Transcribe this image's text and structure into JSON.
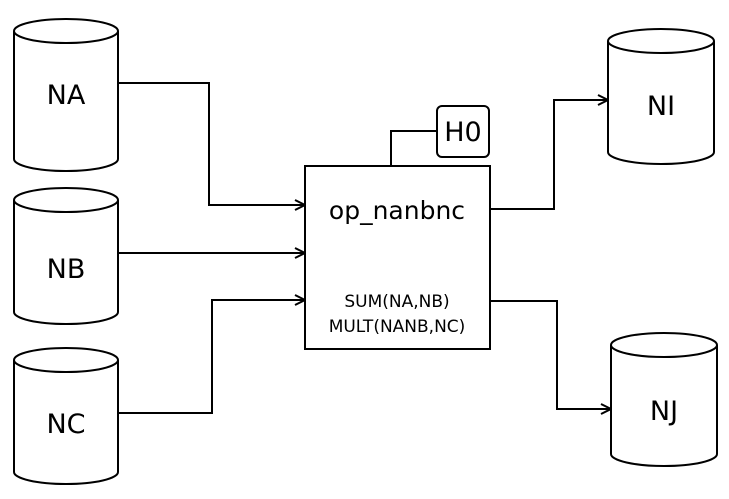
{
  "inputs": [
    {
      "label": "NA"
    },
    {
      "label": "NB"
    },
    {
      "label": "NC"
    }
  ],
  "outputs": [
    {
      "label": "NI"
    },
    {
      "label": "NJ"
    }
  ],
  "process": {
    "title": "op_nanbnc",
    "operations": [
      "SUM(NA,NB)",
      "MULT(NANB,NC)"
    ]
  },
  "hook": {
    "label": "H0"
  }
}
